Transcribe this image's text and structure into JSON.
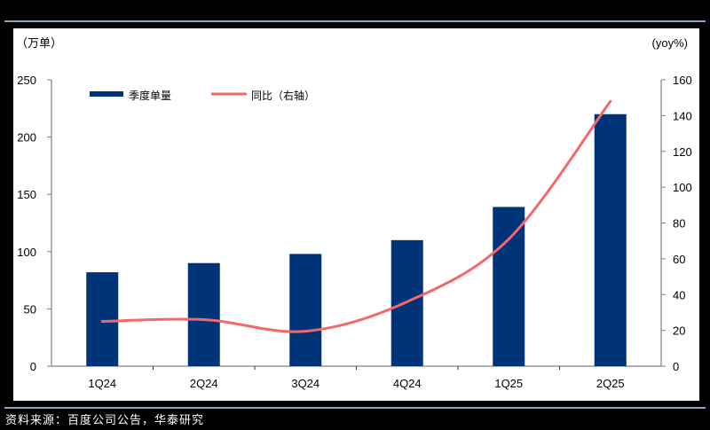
{
  "chart_data": {
    "type": "bar+line",
    "categories": [
      "1Q24",
      "2Q24",
      "3Q24",
      "4Q24",
      "1Q25",
      "2Q25"
    ],
    "series": [
      {
        "name": "季度单量",
        "type": "bar",
        "axis": "left",
        "color": "#003478",
        "values": [
          82,
          90,
          98,
          110,
          139,
          220
        ]
      },
      {
        "name": "同比（右轴）",
        "type": "line",
        "axis": "right",
        "color": "#f4676a",
        "values": [
          25,
          26,
          19.5,
          36,
          71,
          148
        ]
      }
    ],
    "left_axis": {
      "label": "（万单）",
      "ylim": [
        0,
        250
      ],
      "ticks": [
        0,
        50,
        100,
        150,
        200,
        250
      ]
    },
    "right_axis": {
      "label": "(yoy%)",
      "ylim": [
        0,
        160
      ],
      "ticks": [
        0,
        20,
        40,
        60,
        80,
        100,
        120,
        140,
        160
      ]
    },
    "legend": {
      "position": "top-left",
      "entries": [
        "季度单量",
        "同比（右轴）"
      ]
    },
    "grid": false
  },
  "source": "资料来源：百度公司公告，华泰研究"
}
